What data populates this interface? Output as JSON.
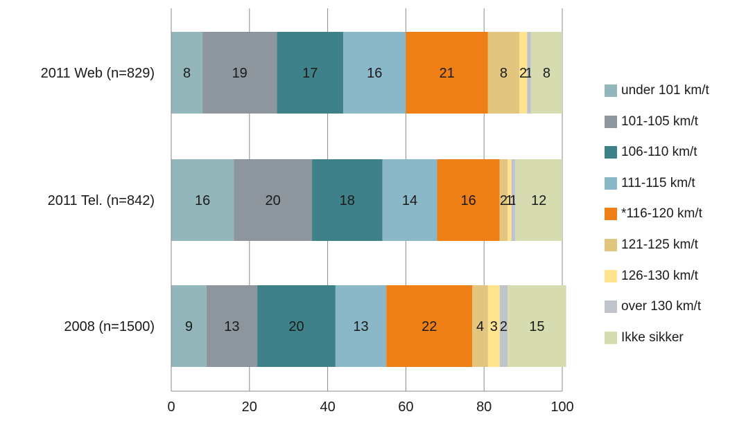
{
  "chart_data": {
    "type": "bar",
    "orientation": "horizontal",
    "stacked": true,
    "title": "",
    "xlabel": "",
    "ylabel": "",
    "xlim": [
      0,
      100
    ],
    "xticks": [
      "0",
      "20",
      "40",
      "60",
      "80",
      "100"
    ],
    "grid": "vertical",
    "legend_position": "right",
    "categories": [
      "2011 Web (n=829)",
      "2011 Tel. (n=842)",
      "2008 (n=1500)"
    ],
    "series": [
      {
        "name": "under 101  km/t",
        "color": "#93B6BB",
        "values": [
          8,
          16,
          9
        ]
      },
      {
        "name": "101-105  km/t",
        "color": "#8E969D",
        "values": [
          19,
          20,
          13
        ]
      },
      {
        "name": "106-110  km/t",
        "color": "#3F8188",
        "values": [
          17,
          18,
          20
        ]
      },
      {
        "name": "111-115  km/t",
        "color": "#8BB8C8",
        "values": [
          16,
          14,
          13
        ]
      },
      {
        "name": "*116-120  km/t",
        "color": "#EE7F17",
        "values": [
          21,
          16,
          22
        ]
      },
      {
        "name": "121-125  km/t",
        "color": "#E2C57E",
        "values": [
          8,
          2,
          4
        ]
      },
      {
        "name": "126-130  km/t",
        "color": "#FFE38F",
        "values": [
          2,
          1,
          3
        ]
      },
      {
        "name": "over 130  km/t",
        "color": "#BFC4CB",
        "values": [
          1,
          1,
          2
        ]
      },
      {
        "name": "Ikke sikker",
        "color": "#D6DCAF",
        "values": [
          8,
          12,
          15
        ]
      }
    ],
    "data_labels": [
      [
        "8",
        "19",
        "17",
        "16",
        "21",
        "8",
        "2",
        "1",
        "8"
      ],
      [
        "16",
        "20",
        "18",
        "14",
        "16",
        "2",
        "1",
        "1",
        "12"
      ],
      [
        "9",
        "13",
        "20",
        "13",
        "22",
        "4",
        "3",
        "2",
        "15"
      ]
    ]
  }
}
